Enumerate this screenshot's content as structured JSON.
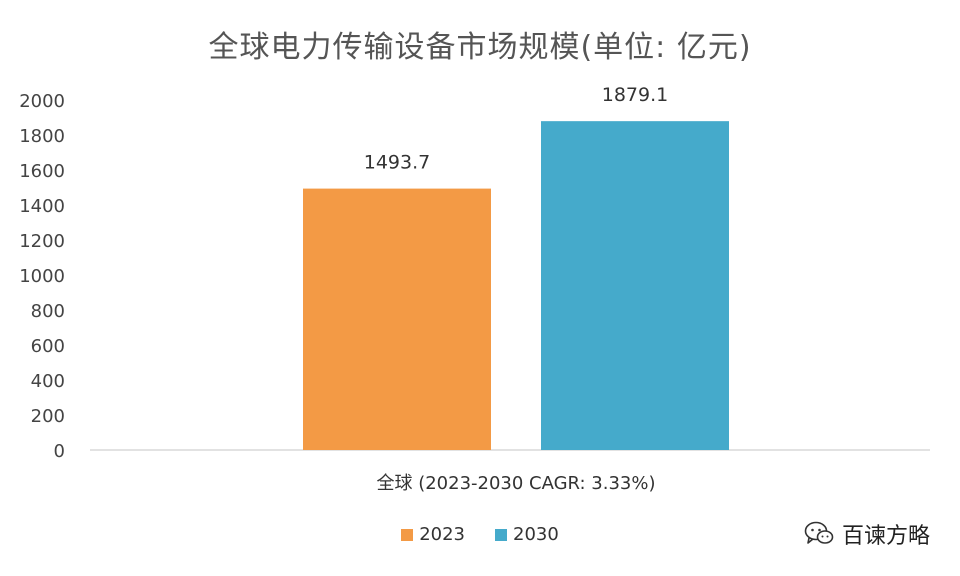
{
  "chart_data": {
    "type": "bar",
    "title": "全球电力传输设备市场规模(单位: 亿元)",
    "categories": [
      "全球 (2023-2030 CAGR: 3.33%)"
    ],
    "series": [
      {
        "name": "2023",
        "values": [
          1493.7
        ],
        "color": "#F39A45"
      },
      {
        "name": "2030",
        "values": [
          1879.1
        ],
        "color": "#45AACB"
      }
    ],
    "data_labels": [
      "1493.7",
      "1879.1"
    ],
    "ylim": [
      0,
      2000
    ],
    "yticks": [
      0,
      200,
      400,
      600,
      800,
      1000,
      1200,
      1400,
      1600,
      1800,
      2000
    ],
    "xlabel": "",
    "ylabel": "",
    "grid": false,
    "legend_position": "bottom"
  },
  "watermark": {
    "icon": "wechat-icon",
    "text": "百谏方略"
  }
}
